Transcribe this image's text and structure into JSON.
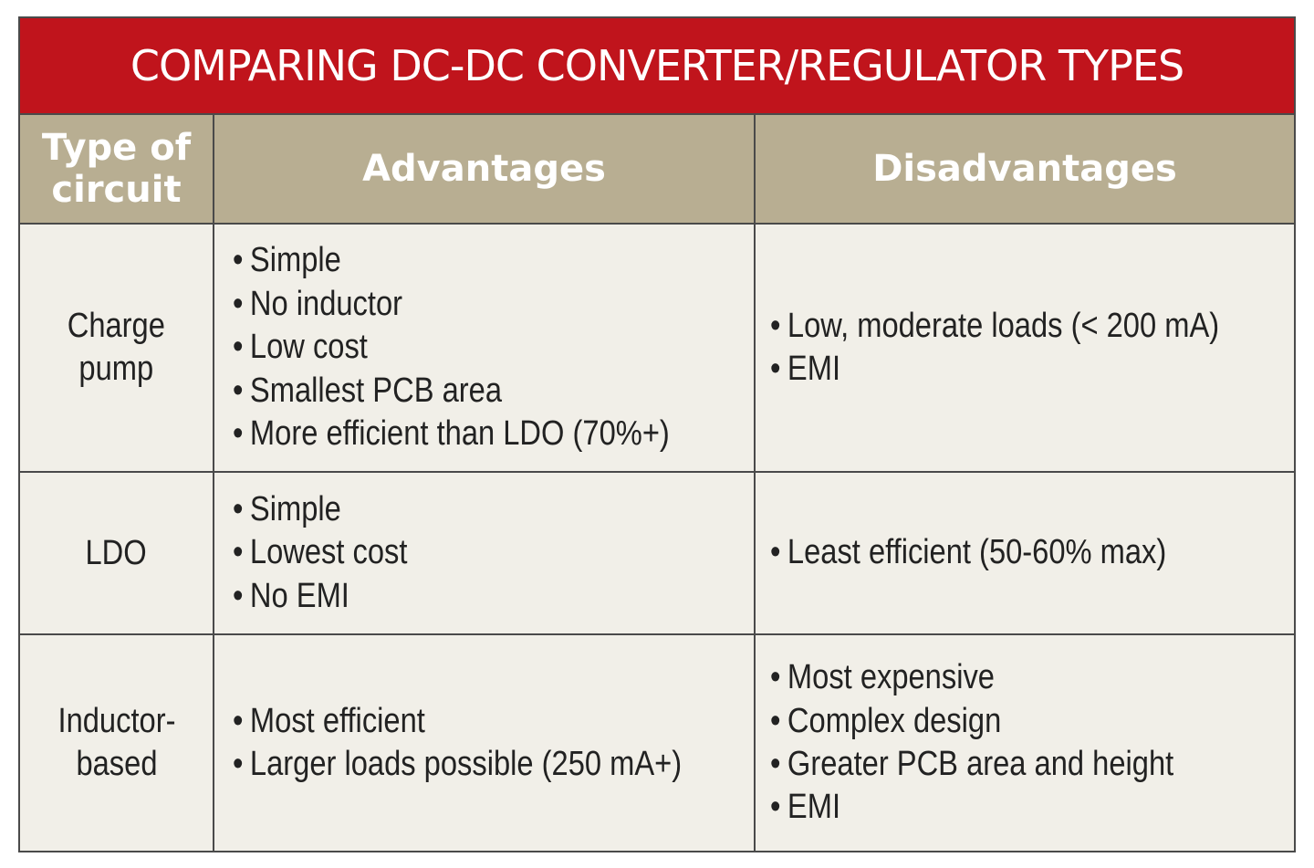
{
  "title": "COMPARING DC-DC CONVERTER/REGULATOR TYPES",
  "headers": {
    "type": "Type of circuit",
    "advantages": "Advantages",
    "disadvantages": "Disadvantages"
  },
  "bullet_glyph": "•",
  "colors": {
    "title_bg": "#c0141c",
    "header_bg": "#b8ae92",
    "body_bg": "#f1efe8"
  },
  "rows": [
    {
      "type": [
        "Charge",
        "pump"
      ],
      "advantages": [
        "Simple",
        "No inductor",
        "Low cost",
        "Smallest PCB area",
        "More efficient than LDO (70%+)"
      ],
      "disadvantages": [
        "Low, moderate loads (< 200 mA)",
        "EMI"
      ]
    },
    {
      "type": [
        "LDO"
      ],
      "advantages": [
        "Simple",
        "Lowest cost",
        "No EMI"
      ],
      "disadvantages": [
        "Least efficient (50-60% max)"
      ]
    },
    {
      "type": [
        "Inductor-",
        "based"
      ],
      "advantages": [
        "Most efficient",
        "Larger loads possible (250 mA+)"
      ],
      "disadvantages": [
        "Most expensive",
        "Complex design",
        "Greater PCB area and height",
        "EMI"
      ]
    }
  ]
}
